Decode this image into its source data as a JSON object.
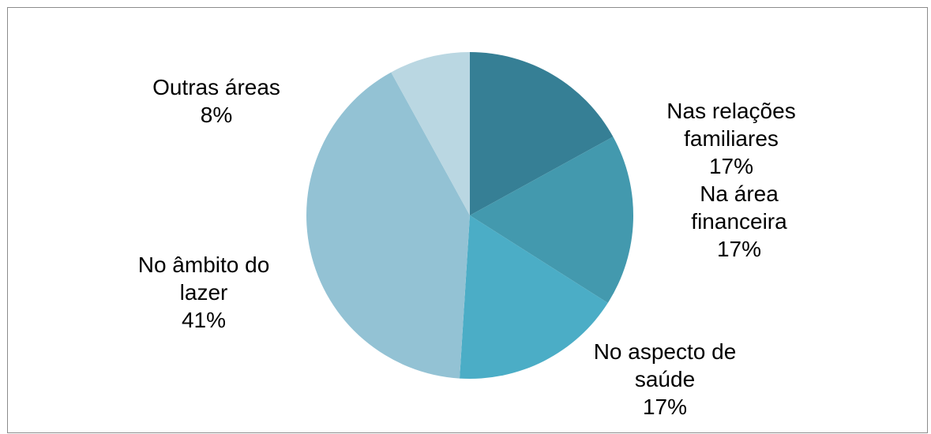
{
  "chart_data": {
    "type": "pie",
    "title": "",
    "slices": [
      {
        "label_lines": [
          "Nas relações",
          "familiares"
        ],
        "percent_label": "17%",
        "value": 17,
        "color": "#367f95"
      },
      {
        "label_lines": [
          "Na área",
          "financeira"
        ],
        "percent_label": "17%",
        "value": 17,
        "color": "#4399ae"
      },
      {
        "label_lines": [
          "No aspecto de",
          "saúde"
        ],
        "percent_label": "17%",
        "value": 17,
        "color": "#4badc6"
      },
      {
        "label_lines": [
          "No âmbito do",
          "lazer"
        ],
        "percent_label": "41%",
        "value": 41,
        "color": "#93c2d4"
      },
      {
        "label_lines": [
          "Outras áreas"
        ],
        "percent_label": "8%",
        "value": 8,
        "color": "#bad7e2"
      }
    ]
  }
}
